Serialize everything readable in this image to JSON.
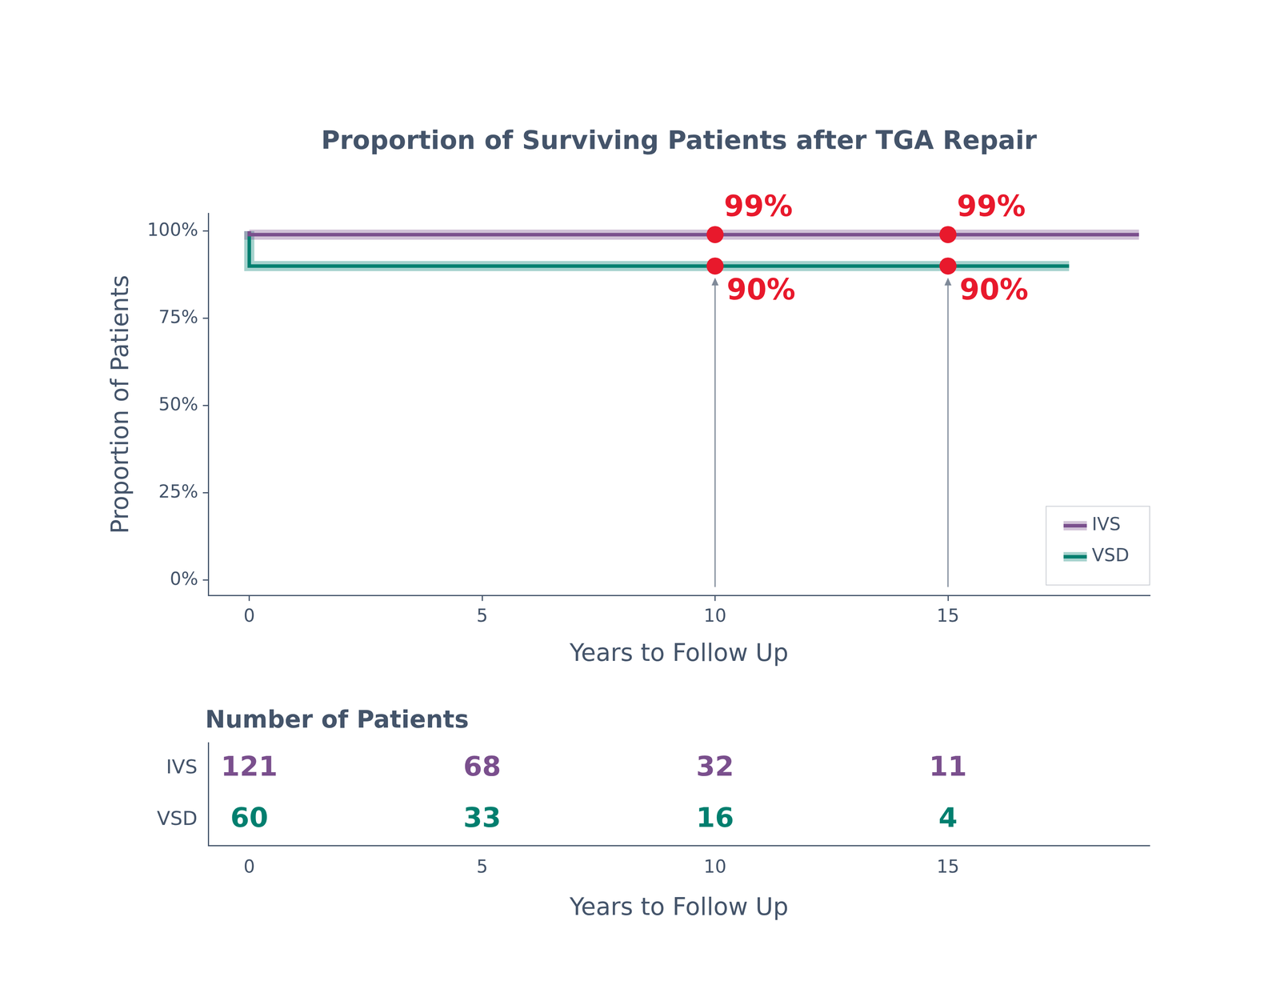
{
  "chart_data": [
    {
      "type": "line",
      "title": "Proportion of Surviving Patients after TGA Repair",
      "xlabel": "Years to Follow Up",
      "ylabel": "Proportion of Patients",
      "line_style": "step",
      "xlim": [
        -0.88,
        19.33
      ],
      "xticks": [
        0,
        5,
        10,
        15
      ],
      "ylim": [
        -4.4,
        105.1
      ],
      "yticks": [
        {
          "value": 0,
          "label": "0%"
        },
        {
          "value": 25,
          "label": "25%"
        },
        {
          "value": 50,
          "label": "50%"
        },
        {
          "value": 75,
          "label": "75%"
        },
        {
          "value": 100,
          "label": "100%"
        }
      ],
      "grid": false,
      "legend": "bottom right",
      "series": [
        {
          "name": "IVS",
          "color": "#7a4f8d",
          "x": [
            0,
            0.08,
            19.1
          ],
          "values": [
            100,
            99,
            99
          ]
        },
        {
          "name": "VSD",
          "color": "#007f6f",
          "x": [
            0,
            0.08,
            17.6
          ],
          "values": [
            100,
            90,
            90
          ]
        }
      ],
      "annotations": [
        {
          "x": 10,
          "y": 99,
          "text": "99%"
        },
        {
          "x": 15,
          "y": 99,
          "text": "99%"
        },
        {
          "x": 10,
          "y": 90,
          "text": "90%"
        },
        {
          "x": 15,
          "y": 90,
          "text": "90%"
        }
      ]
    },
    {
      "type": "table",
      "title": "Number of Patients",
      "xlabel": "Years to Follow Up",
      "xlim": [
        -0.88,
        19.33
      ],
      "xticks": [
        0,
        5,
        10,
        15
      ],
      "x": [
        0,
        5,
        10,
        15
      ],
      "data_labels": true,
      "series": [
        {
          "name": "IVS",
          "color": "#7a4f8d",
          "values": [
            121,
            68,
            32,
            11
          ]
        },
        {
          "name": "VSD",
          "color": "#007f6f",
          "values": [
            60,
            33,
            16,
            4
          ]
        }
      ]
    }
  ]
}
